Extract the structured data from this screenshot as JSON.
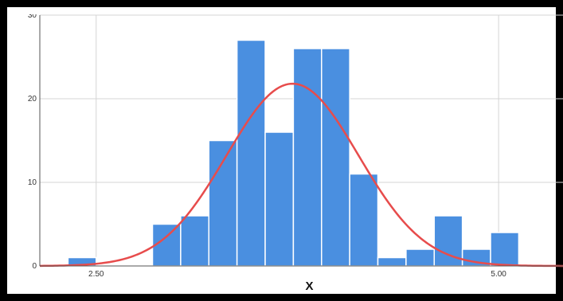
{
  "chart_data": {
    "type": "bar",
    "subtype": "histogram",
    "title": "",
    "xlabel": "X",
    "ylabel": "",
    "xlim": [
      2.15,
      5.4
    ],
    "ylim": [
      0,
      30
    ],
    "x_ticks": [
      {
        "value": 2.5,
        "label": "2.50"
      },
      {
        "value": 5.0,
        "label": "5.00"
      }
    ],
    "y_ticks": [
      {
        "value": 0,
        "label": "0"
      },
      {
        "value": 10,
        "label": "10"
      },
      {
        "value": 20,
        "label": "20"
      },
      {
        "value": 30,
        "label": "30"
      }
    ],
    "grid": true,
    "bin_width": 0.175,
    "bins": [
      {
        "start": 2.325,
        "count": 1
      },
      {
        "start": 2.5,
        "count": 0
      },
      {
        "start": 2.675,
        "count": 0
      },
      {
        "start": 2.85,
        "count": 5
      },
      {
        "start": 3.025,
        "count": 6
      },
      {
        "start": 3.2,
        "count": 15
      },
      {
        "start": 3.375,
        "count": 27
      },
      {
        "start": 3.55,
        "count": 16
      },
      {
        "start": 3.725,
        "count": 26
      },
      {
        "start": 3.9,
        "count": 26
      },
      {
        "start": 4.075,
        "count": 11
      },
      {
        "start": 4.25,
        "count": 1
      },
      {
        "start": 4.425,
        "count": 2
      },
      {
        "start": 4.6,
        "count": 6
      },
      {
        "start": 4.775,
        "count": 2
      },
      {
        "start": 4.95,
        "count": 4
      }
    ],
    "normal_curve": {
      "mean": 3.72,
      "std": 0.41,
      "peak": 21.8,
      "color": "#e74c4c"
    },
    "colors": {
      "bar_fill": "#4a8fe0",
      "bar_stroke": "#ffffff",
      "grid": "#d4d4d4",
      "axis": "#555555",
      "curve": "#e74c4c"
    }
  }
}
